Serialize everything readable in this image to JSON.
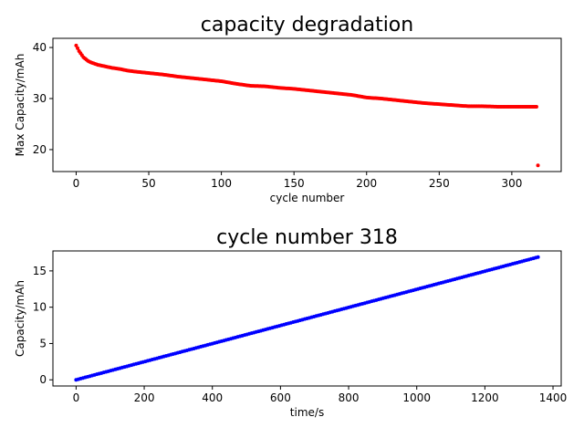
{
  "chart_data": [
    {
      "type": "scatter",
      "title": "capacity degradation",
      "xlabel": "cycle number",
      "ylabel": "Max Capacity/mAh",
      "xlim": [
        -16,
        334
      ],
      "ylim": [
        15.7,
        41.8
      ],
      "xticks": [
        0,
        50,
        100,
        150,
        200,
        250,
        300
      ],
      "yticks": [
        20,
        30,
        40
      ],
      "color": "#ff0000",
      "grid": false,
      "series": [
        {
          "x": [
            0,
            2,
            5,
            8,
            10,
            15,
            20,
            25,
            30,
            35,
            40,
            50,
            60,
            70,
            80,
            90,
            100,
            110,
            120,
            130,
            140,
            150,
            160,
            170,
            180,
            190,
            200,
            210,
            220,
            230,
            240,
            250,
            260,
            270,
            280,
            290,
            300,
            310,
            317,
            318
          ],
          "y": [
            40.4,
            39.3,
            38.1,
            37.4,
            37.1,
            36.6,
            36.3,
            36.0,
            35.8,
            35.5,
            35.3,
            35.0,
            34.7,
            34.3,
            34.0,
            33.7,
            33.4,
            32.9,
            32.5,
            32.4,
            32.1,
            31.9,
            31.6,
            31.3,
            31.0,
            30.7,
            30.2,
            30.0,
            29.7,
            29.4,
            29.1,
            28.9,
            28.7,
            28.5,
            28.5,
            28.4,
            28.4,
            28.4,
            28.4,
            16.9
          ]
        }
      ]
    },
    {
      "type": "scatter",
      "title": "cycle number 318",
      "xlabel": "time/s",
      "ylabel": "Capacity/mAh",
      "xlim": [
        -68,
        1424
      ],
      "ylim": [
        -0.85,
        17.75
      ],
      "xticks": [
        0,
        200,
        400,
        600,
        800,
        1000,
        1200,
        1400
      ],
      "yticks": [
        0,
        5,
        10,
        15
      ],
      "color": "#0000ff",
      "grid": false,
      "series": [
        {
          "x": [
            0,
            1356
          ],
          "y": [
            0,
            16.9
          ],
          "linear_points": 200
        }
      ]
    }
  ]
}
